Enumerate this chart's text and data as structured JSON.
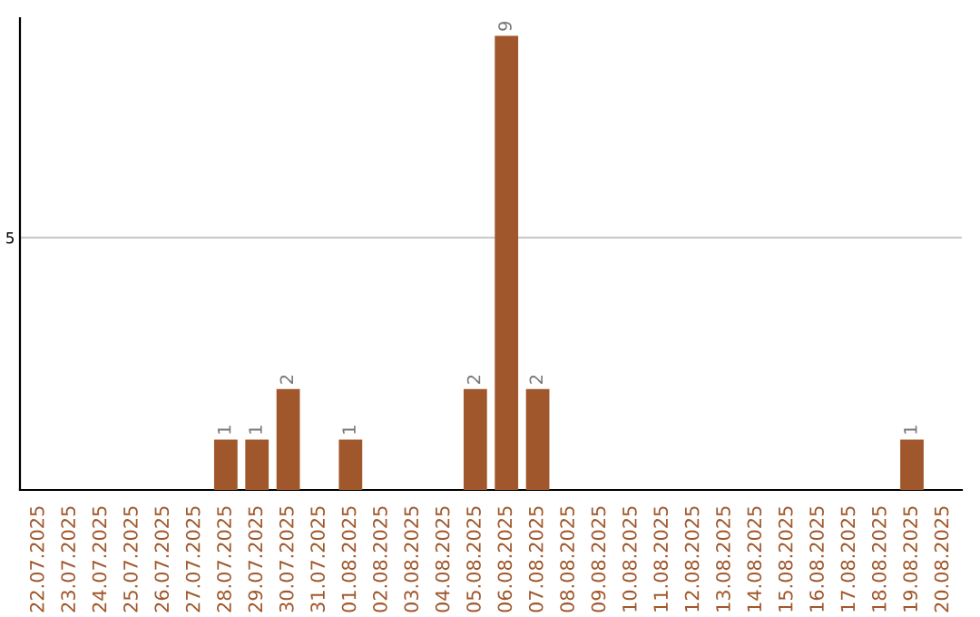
{
  "chart_data": {
    "type": "bar",
    "categories": [
      "22.07.2025",
      "23.07.2025",
      "24.07.2025",
      "25.07.2025",
      "26.07.2025",
      "27.07.2025",
      "28.07.2025",
      "29.07.2025",
      "30.07.2025",
      "31.07.2025",
      "01.08.2025",
      "02.08.2025",
      "03.08.2025",
      "04.08.2025",
      "05.08.2025",
      "06.08.2025",
      "07.08.2025",
      "08.08.2025",
      "09.08.2025",
      "10.08.2025",
      "11.08.2025",
      "12.08.2025",
      "13.08.2025",
      "14.08.2025",
      "15.08.2025",
      "16.08.2025",
      "17.08.2025",
      "18.08.2025",
      "19.08.2025",
      "20.08.2025"
    ],
    "values": [
      0,
      0,
      0,
      0,
      0,
      0,
      1,
      1,
      2,
      0,
      1,
      0,
      0,
      0,
      2,
      9,
      2,
      0,
      0,
      0,
      0,
      0,
      0,
      0,
      0,
      0,
      0,
      0,
      1,
      0
    ],
    "value_labels": [
      null,
      null,
      null,
      null,
      null,
      null,
      "1",
      "1",
      "2",
      null,
      "1",
      null,
      null,
      null,
      "2",
      "9",
      "2",
      null,
      null,
      null,
      null,
      null,
      null,
      null,
      null,
      null,
      null,
      null,
      "1",
      null
    ],
    "color": "#a0572b",
    "ylim": [
      0,
      9.35
    ],
    "yticks": [
      5
    ],
    "grid": "y",
    "legend": false
  }
}
